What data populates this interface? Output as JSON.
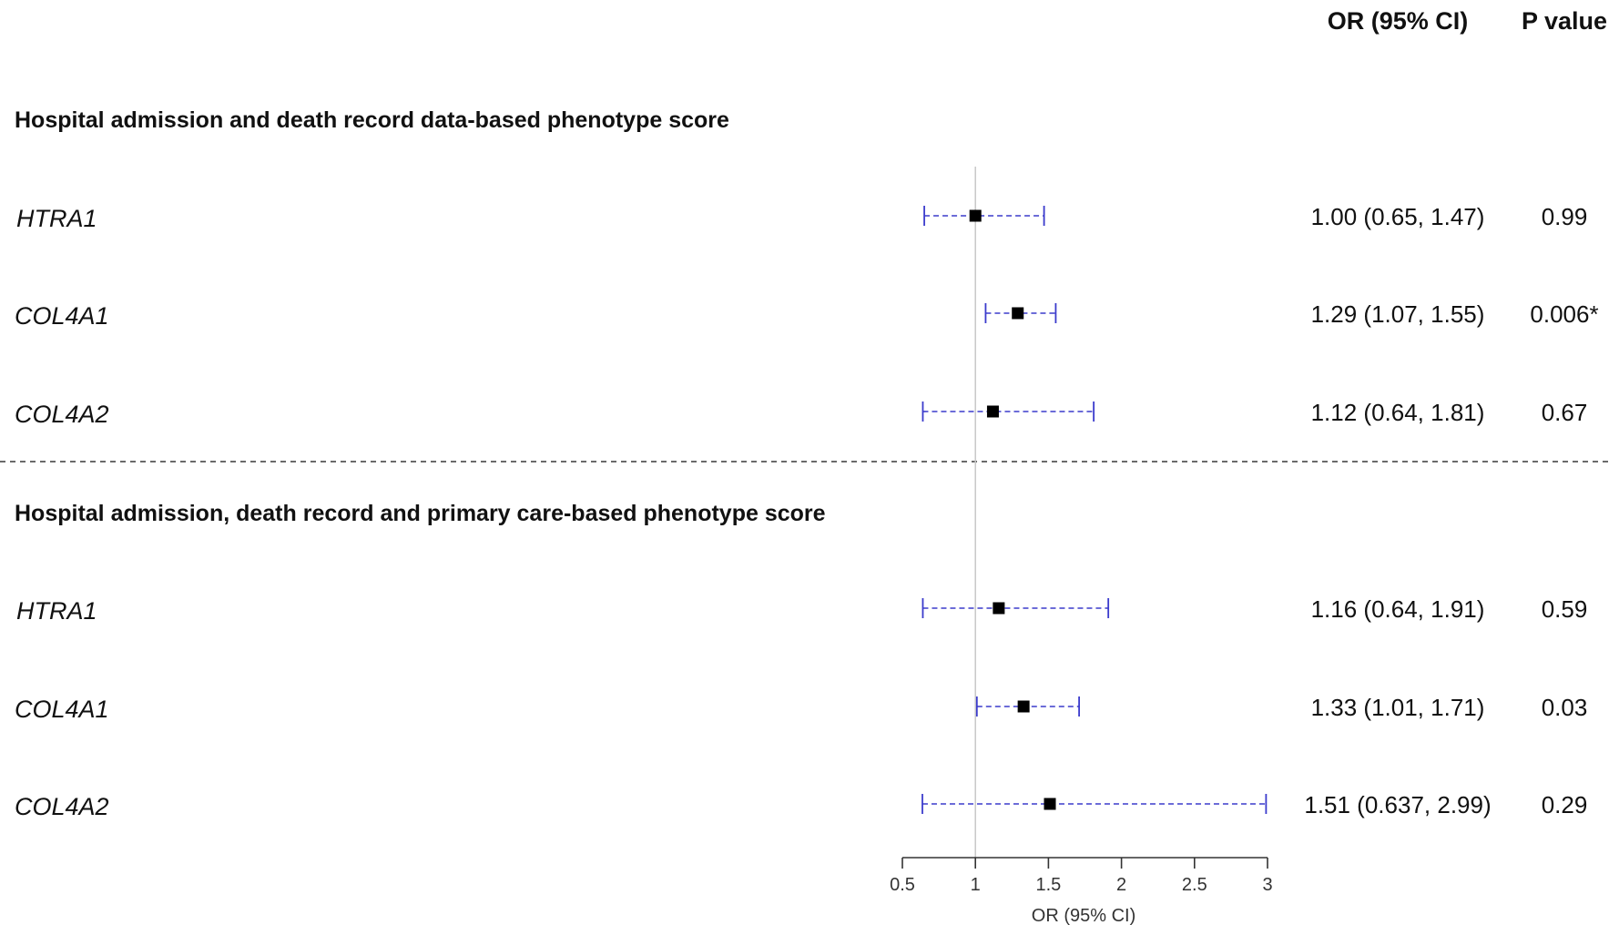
{
  "headers": {
    "or_ci": "OR (95% CI)",
    "p_value": "P value"
  },
  "sections": [
    {
      "title": "Hospital admission and death record data-based phenotype score",
      "rows": [
        {
          "gene": "HTRA1",
          "or": 1.0,
          "lower": 0.65,
          "upper": 1.47,
          "or_text": "1.00 (0.65, 1.47)",
          "p": "0.99"
        },
        {
          "gene": "COL4A1",
          "or": 1.29,
          "lower": 1.07,
          "upper": 1.55,
          "or_text": "1.29 (1.07, 1.55)",
          "p": "0.006*"
        },
        {
          "gene": "COL4A2",
          "or": 1.12,
          "lower": 0.64,
          "upper": 1.81,
          "or_text": "1.12 (0.64, 1.81)",
          "p": "0.67"
        }
      ]
    },
    {
      "title": "Hospital admission, death record and primary care-based phenotype score",
      "rows": [
        {
          "gene": "HTRA1",
          "or": 1.16,
          "lower": 0.64,
          "upper": 1.91,
          "or_text": "1.16 (0.64, 1.91)",
          "p": "0.59"
        },
        {
          "gene": "COL4A1",
          "or": 1.33,
          "lower": 1.01,
          "upper": 1.71,
          "or_text": "1.33 (1.01, 1.71)",
          "p": "0.03"
        },
        {
          "gene": "COL4A2",
          "or": 1.51,
          "lower": 0.637,
          "upper": 2.99,
          "or_text": "1.51 (0.637, 2.99)",
          "p": "0.29"
        }
      ]
    }
  ],
  "chart_data": {
    "type": "scatter",
    "title": "",
    "xlabel": "OR (95% CI)",
    "ylabel": "",
    "xlim": [
      0.5,
      3
    ],
    "x_ticks": [
      0.5,
      1,
      1.5,
      2,
      2.5,
      3
    ],
    "x_tick_labels": [
      "0.5",
      "1",
      "1.5",
      "2",
      "2.5",
      "3"
    ],
    "reference_line": 1,
    "grid": false,
    "series": [
      {
        "name": "Hospital admission and death record data-based phenotype score",
        "categories": [
          "HTRA1",
          "COL4A1",
          "COL4A2"
        ],
        "values": [
          1.0,
          1.29,
          1.12
        ],
        "lower": [
          0.65,
          1.07,
          0.64
        ],
        "upper": [
          1.47,
          1.55,
          1.81
        ]
      },
      {
        "name": "Hospital admission, death record and primary care-based phenotype score",
        "categories": [
          "HTRA1",
          "COL4A1",
          "COL4A2"
        ],
        "values": [
          1.16,
          1.33,
          1.51
        ],
        "lower": [
          0.64,
          1.01,
          0.637
        ],
        "upper": [
          1.91,
          1.71,
          2.99
        ]
      }
    ],
    "colors": {
      "ci": "#3b3bcc",
      "marker": "#000000",
      "reference": "#c8c8c8"
    }
  }
}
